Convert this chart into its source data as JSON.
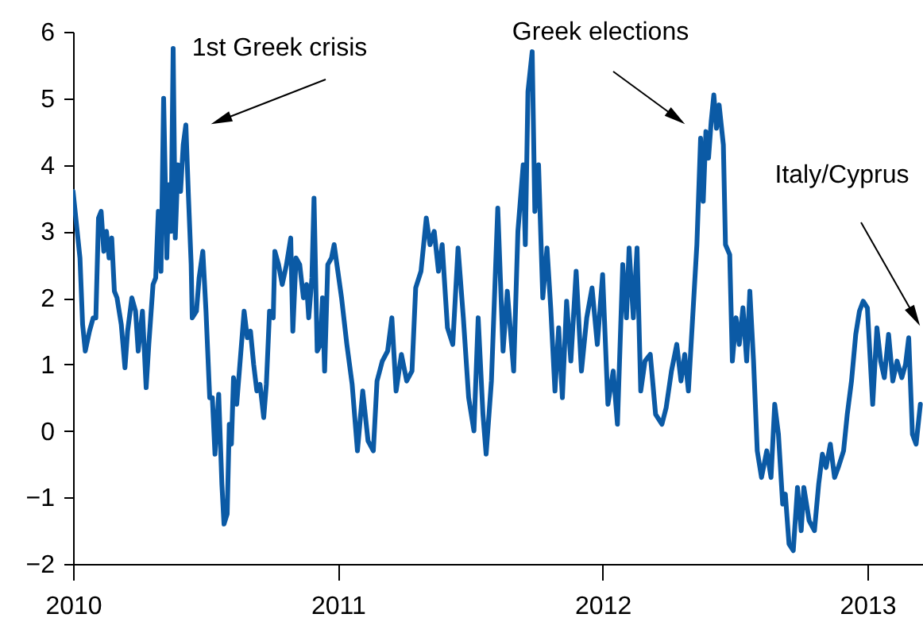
{
  "chart_data": {
    "type": "line",
    "grid": false,
    "marker": "none",
    "line_style": "solid",
    "xlim": [
      2010,
      2013.21
    ],
    "xticks": [
      2010,
      2011,
      2012,
      2013
    ],
    "ylim": [
      -2,
      6
    ],
    "yticks": [
      -2,
      -1,
      0,
      1,
      2,
      3,
      4,
      5,
      6
    ],
    "annotations": [
      "1st Greek crisis",
      "Greek elections",
      "Italy/Cyprus"
    ],
    "series": [
      {
        "color": "#0b5aa5",
        "x": [
          2010.0,
          2010.026,
          2010.036,
          2010.046,
          2010.062,
          2010.076,
          2010.086,
          2010.096,
          2010.106,
          2010.116,
          2010.126,
          2010.136,
          2010.146,
          2010.156,
          2010.166,
          2010.182,
          2010.196,
          2010.206,
          2010.222,
          2010.236,
          2010.246,
          2010.262,
          2010.276,
          2010.286,
          2010.302,
          2010.312,
          2010.322,
          2010.332,
          2010.342,
          2010.354,
          2010.362,
          2010.37,
          2010.378,
          2010.386,
          2010.396,
          2010.406,
          2010.416,
          2010.426,
          2010.436,
          2010.446,
          2010.45,
          2010.466,
          2010.476,
          2010.49,
          2010.502,
          2010.516,
          2010.526,
          2010.536,
          2010.55,
          2010.562,
          2010.57,
          2010.582,
          2010.59,
          2010.598,
          2010.606,
          2010.618,
          2010.63,
          2010.646,
          2010.658,
          2010.67,
          2010.682,
          2010.694,
          2010.706,
          2010.72,
          2010.73,
          2010.742,
          2010.756,
          2010.762,
          2010.776,
          2010.79,
          2010.806,
          2010.822,
          2010.83,
          2010.842,
          2010.856,
          2010.87,
          2010.882,
          2010.89,
          2010.902,
          2010.91,
          2010.922,
          2010.934,
          2010.942,
          2010.95,
          2010.962,
          2010.976,
          2010.986,
          2011.0,
          2011.014,
          2011.034,
          2011.054,
          2011.074,
          2011.094,
          2011.114,
          2011.134,
          2011.148,
          2011.168,
          2011.188,
          2011.204,
          2011.22,
          2011.24,
          2011.26,
          2011.28,
          2011.294,
          2011.314,
          2011.334,
          2011.348,
          2011.364,
          2011.38,
          2011.394,
          2011.414,
          2011.434,
          2011.454,
          2011.474,
          2011.494,
          2011.514,
          2011.53,
          2011.548,
          2011.56,
          2011.58,
          2011.604,
          2011.624,
          2011.64,
          2011.664,
          2011.68,
          2011.7,
          2011.708,
          2011.718,
          2011.734,
          2011.744,
          2011.758,
          2011.774,
          2011.79,
          2011.804,
          2011.82,
          2011.834,
          2011.848,
          2011.864,
          2011.88,
          2011.9,
          2011.92,
          2011.94,
          2011.96,
          2011.98,
          2012.0,
          2012.02,
          2012.04,
          2012.056,
          2012.076,
          2012.09,
          2012.1,
          2012.116,
          2012.13,
          2012.144,
          2012.16,
          2012.18,
          2012.2,
          2012.224,
          2012.24,
          2012.26,
          2012.28,
          2012.296,
          2012.31,
          2012.324,
          2012.34,
          2012.356,
          2012.37,
          2012.38,
          2012.39,
          2012.4,
          2012.41,
          2012.42,
          2012.43,
          2012.44,
          2012.456,
          2012.464,
          2012.48,
          2012.49,
          2012.504,
          2012.516,
          2012.53,
          2012.544,
          2012.556,
          2012.57,
          2012.584,
          2012.6,
          2012.62,
          2012.636,
          2012.65,
          2012.664,
          2012.68,
          2012.69,
          2012.704,
          2012.72,
          2012.736,
          2012.75,
          2012.76,
          2012.78,
          2012.8,
          2012.816,
          2012.83,
          2012.844,
          2012.86,
          2012.876,
          2012.89,
          2012.91,
          2012.924,
          2012.94,
          2012.956,
          2012.97,
          2012.984,
          2013.0,
          2013.02,
          2013.036,
          2013.05,
          2013.064,
          2013.08,
          2013.096,
          2013.112,
          2013.13,
          2013.144,
          2013.156,
          2013.17,
          2013.184,
          2013.2
        ],
        "values": [
          3.6,
          2.6,
          1.6,
          1.2,
          1.5,
          1.7,
          1.7,
          3.2,
          3.3,
          2.7,
          3.0,
          2.6,
          2.9,
          2.1,
          2.0,
          1.6,
          0.95,
          1.5,
          2.0,
          1.8,
          1.2,
          1.8,
          0.65,
          1.3,
          2.2,
          2.3,
          3.3,
          2.4,
          5.0,
          2.6,
          3.7,
          3.0,
          5.75,
          2.9,
          4.0,
          3.6,
          4.3,
          4.6,
          3.5,
          2.5,
          1.7,
          1.8,
          2.3,
          2.7,
          1.8,
          0.5,
          0.5,
          -0.35,
          0.55,
          -0.8,
          -1.4,
          -1.25,
          0.1,
          -0.2,
          0.8,
          0.4,
          1.0,
          1.8,
          1.4,
          1.5,
          1.0,
          0.6,
          0.7,
          0.2,
          0.7,
          1.8,
          1.7,
          2.7,
          2.5,
          2.2,
          2.5,
          2.9,
          1.5,
          2.6,
          2.5,
          2.0,
          2.2,
          1.7,
          2.3,
          3.5,
          1.2,
          1.3,
          2.0,
          0.9,
          2.5,
          2.6,
          2.8,
          2.4,
          2.0,
          1.3,
          0.7,
          -0.3,
          0.6,
          -0.15,
          -0.3,
          0.75,
          1.05,
          1.2,
          1.7,
          0.6,
          1.15,
          0.75,
          0.9,
          2.15,
          2.4,
          3.2,
          2.8,
          3.0,
          2.4,
          2.8,
          1.55,
          1.3,
          2.75,
          1.7,
          0.5,
          0.0,
          1.7,
          0.25,
          -0.35,
          0.75,
          3.35,
          1.2,
          2.1,
          0.9,
          3.0,
          4.0,
          2.8,
          5.1,
          5.7,
          3.3,
          4.0,
          2.0,
          2.75,
          1.85,
          0.6,
          1.55,
          0.5,
          1.95,
          1.05,
          2.4,
          0.9,
          1.7,
          2.15,
          1.3,
          2.35,
          0.4,
          0.9,
          0.1,
          2.5,
          1.7,
          2.75,
          1.7,
          2.75,
          0.6,
          1.05,
          1.15,
          0.25,
          0.1,
          0.35,
          0.9,
          1.3,
          0.75,
          1.15,
          0.6,
          1.7,
          2.8,
          4.4,
          3.45,
          4.5,
          4.1,
          4.65,
          5.05,
          4.55,
          4.9,
          4.3,
          2.8,
          2.65,
          1.05,
          1.7,
          1.3,
          1.85,
          1.05,
          2.1,
          1.05,
          -0.3,
          -0.7,
          -0.3,
          -0.7,
          0.4,
          -0.05,
          -1.1,
          -0.95,
          -1.7,
          -1.8,
          -0.85,
          -1.5,
          -0.85,
          -1.35,
          -1.5,
          -0.8,
          -0.35,
          -0.55,
          -0.2,
          -0.7,
          -0.55,
          -0.3,
          0.25,
          0.75,
          1.45,
          1.8,
          1.95,
          1.85,
          0.4,
          1.55,
          1.05,
          0.8,
          1.45,
          0.75,
          1.05,
          0.8,
          1.0,
          1.4,
          -0.05,
          -0.2,
          0.4
        ]
      }
    ]
  }
}
